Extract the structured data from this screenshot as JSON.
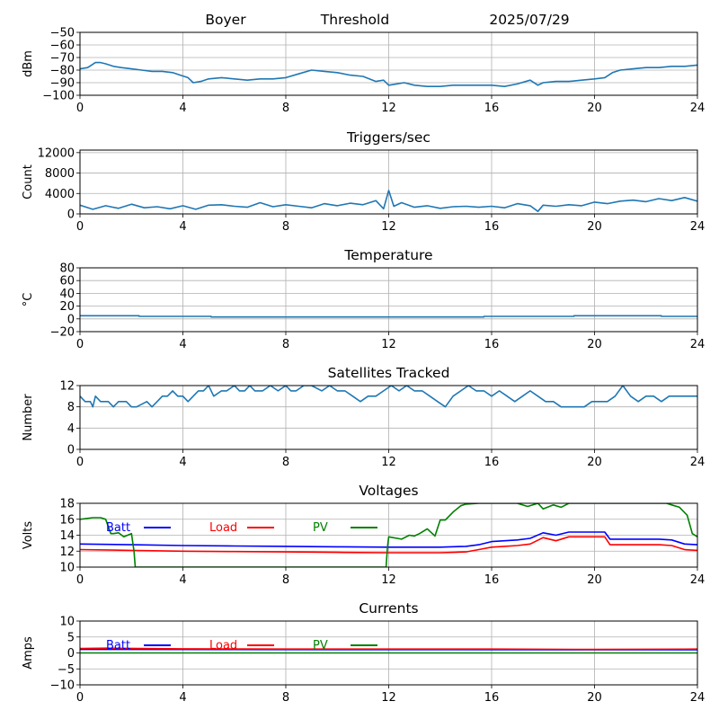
{
  "header": {
    "site": "Boyer",
    "label": "Threshold",
    "date": "2025/07/29"
  },
  "chart_data": [
    {
      "id": "threshold",
      "type": "line",
      "title": "",
      "ylabel": "dBm",
      "xlim": [
        0,
        24
      ],
      "ylim": [
        -100,
        -50
      ],
      "xticks": [
        0,
        4,
        8,
        12,
        16,
        20,
        24
      ],
      "yticks": [
        -100,
        -90,
        -80,
        -70,
        -60,
        -50
      ],
      "grid": true,
      "series": [
        {
          "color": "#1f77b4",
          "x": [
            0,
            0.3,
            0.6,
            0.8,
            1.0,
            1.3,
            1.6,
            2.0,
            2.4,
            2.8,
            3.2,
            3.6,
            3.9,
            4.2,
            4.4,
            4.7,
            5.0,
            5.5,
            6.0,
            6.5,
            7.0,
            7.5,
            8.0,
            8.5,
            9.0,
            9.5,
            10.0,
            10.5,
            11.0,
            11.5,
            11.8,
            12.0,
            12.3,
            12.6,
            13.0,
            13.5,
            14.0,
            14.5,
            15.0,
            15.5,
            16.0,
            16.5,
            17.0,
            17.5,
            17.8,
            18.0,
            18.5,
            19.0,
            19.5,
            20.0,
            20.4,
            20.7,
            21.0,
            21.5,
            22.0,
            22.5,
            23.0,
            23.5,
            24.0
          ],
          "y": [
            -79,
            -78,
            -74,
            -74,
            -75,
            -77,
            -78,
            -79,
            -80,
            -81,
            -81,
            -82,
            -84,
            -86,
            -90,
            -89,
            -87,
            -86,
            -87,
            -88,
            -87,
            -87,
            -86,
            -83,
            -80,
            -81,
            -82,
            -84,
            -85,
            -89,
            -88,
            -92,
            -91,
            -90,
            -92,
            -93,
            -93,
            -92,
            -92,
            -92,
            -92,
            -93,
            -91,
            -88,
            -92,
            -90,
            -89,
            -89,
            -88,
            -87,
            -86,
            -82,
            -80,
            -79,
            -78,
            -78,
            -77,
            -77,
            -76
          ]
        }
      ]
    },
    {
      "id": "triggers",
      "type": "line",
      "title": "Triggers/sec",
      "ylabel": "Count",
      "xlim": [
        0,
        24
      ],
      "ylim": [
        0,
        12500
      ],
      "xticks": [
        0,
        4,
        8,
        12,
        16,
        20,
        24
      ],
      "yticks": [
        0,
        4000,
        8000,
        12000
      ],
      "grid": true,
      "series": [
        {
          "color": "#1f77b4",
          "x": [
            0,
            0.5,
            1.0,
            1.5,
            2.0,
            2.5,
            3.0,
            3.5,
            4.0,
            4.5,
            5.0,
            5.5,
            6.0,
            6.5,
            7.0,
            7.5,
            8.0,
            8.5,
            9.0,
            9.5,
            10.0,
            10.5,
            11.0,
            11.5,
            11.8,
            12.0,
            12.2,
            12.5,
            13.0,
            13.5,
            14.0,
            14.5,
            15.0,
            15.5,
            16.0,
            16.5,
            17.0,
            17.5,
            17.8,
            18.0,
            18.5,
            19.0,
            19.5,
            20.0,
            20.5,
            21.0,
            21.5,
            22.0,
            22.5,
            23.0,
            23.5,
            24.0
          ],
          "y": [
            1700,
            900,
            1600,
            1100,
            1900,
            1200,
            1400,
            1000,
            1600,
            900,
            1700,
            1800,
            1500,
            1300,
            2200,
            1400,
            1800,
            1500,
            1200,
            2000,
            1600,
            2100,
            1800,
            2600,
            1000,
            4600,
            1500,
            2200,
            1300,
            1600,
            1100,
            1400,
            1500,
            1300,
            1500,
            1200,
            2000,
            1600,
            500,
            1700,
            1500,
            1800,
            1600,
            2300,
            2000,
            2500,
            2700,
            2400,
            3000,
            2600,
            3200,
            2500
          ]
        }
      ]
    },
    {
      "id": "temperature",
      "type": "line",
      "title": "Temperature",
      "ylabel": "°C",
      "xlim": [
        0,
        24
      ],
      "ylim": [
        -20,
        80
      ],
      "xticks": [
        0,
        4,
        8,
        12,
        16,
        20,
        24
      ],
      "yticks": [
        -20,
        0,
        20,
        40,
        60,
        80
      ],
      "grid": true,
      "series": [
        {
          "color": "#1f77b4",
          "x": [
            0,
            2.3,
            2.3,
            5.1,
            5.1,
            15.7,
            15.7,
            19.2,
            19.2,
            22.6,
            22.6,
            24
          ],
          "y": [
            5,
            5,
            4,
            4,
            3,
            3,
            4,
            4,
            5,
            5,
            4,
            4
          ]
        }
      ]
    },
    {
      "id": "satellites",
      "type": "line",
      "title": "Satellites Tracked",
      "ylabel": "Number",
      "xlim": [
        0,
        24
      ],
      "ylim": [
        0,
        12
      ],
      "xticks": [
        0,
        4,
        8,
        12,
        16,
        20,
        24
      ],
      "yticks": [
        0,
        4,
        8,
        12
      ],
      "grid": true,
      "series": [
        {
          "color": "#1f77b4",
          "x": [
            0,
            0.2,
            0.4,
            0.5,
            0.6,
            0.8,
            1.1,
            1.3,
            1.5,
            1.8,
            2.0,
            2.2,
            2.6,
            2.8,
            3.0,
            3.2,
            3.4,
            3.6,
            3.8,
            4.0,
            4.2,
            4.4,
            4.6,
            4.8,
            5.0,
            5.2,
            5.5,
            5.7,
            6.0,
            6.2,
            6.4,
            6.6,
            6.8,
            7.1,
            7.4,
            7.7,
            8.0,
            8.2,
            8.4,
            8.7,
            9.0,
            9.4,
            9.7,
            10.0,
            10.3,
            10.6,
            10.9,
            11.2,
            11.5,
            11.8,
            12.1,
            12.4,
            12.7,
            13.0,
            13.3,
            13.6,
            13.9,
            14.2,
            14.5,
            14.8,
            15.1,
            15.4,
            15.7,
            16.0,
            16.3,
            16.6,
            16.9,
            17.2,
            17.5,
            17.8,
            18.1,
            18.4,
            18.7,
            19.0,
            19.3,
            19.6,
            19.9,
            20.2,
            20.5,
            20.8,
            21.1,
            21.4,
            21.7,
            22.0,
            22.3,
            22.6,
            22.9,
            23.2,
            23.5,
            23.8,
            24.0
          ],
          "y": [
            10,
            9,
            9,
            8,
            10,
            9,
            9,
            8,
            9,
            9,
            8,
            8,
            9,
            8,
            9,
            10,
            10,
            11,
            10,
            10,
            9,
            10,
            11,
            11,
            12,
            10,
            11,
            11,
            12,
            11,
            11,
            12,
            11,
            11,
            12,
            11,
            12,
            11,
            11,
            12,
            12,
            11,
            12,
            11,
            11,
            10,
            9,
            10,
            10,
            11,
            12,
            11,
            12,
            11,
            11,
            10,
            9,
            8,
            10,
            11,
            12,
            11,
            11,
            10,
            11,
            10,
            9,
            10,
            11,
            10,
            9,
            9,
            8,
            8,
            8,
            8,
            9,
            9,
            9,
            10,
            12,
            10,
            9,
            10,
            10,
            9,
            10,
            10,
            10,
            10,
            10
          ]
        }
      ]
    },
    {
      "id": "voltages",
      "type": "line",
      "title": "Voltages",
      "ylabel": "Volts",
      "xlim": [
        0,
        24
      ],
      "ylim": [
        10,
        18
      ],
      "xticks": [
        0,
        4,
        8,
        12,
        16,
        20,
        24
      ],
      "yticks": [
        10,
        12,
        14,
        16,
        18
      ],
      "grid": true,
      "legend": [
        {
          "label": "Batt",
          "color": "#0000ff"
        },
        {
          "label": "Load",
          "color": "#ff0000"
        },
        {
          "label": "PV",
          "color": "#008000"
        }
      ],
      "series": [
        {
          "label": "Batt",
          "color": "#0000ff",
          "x": [
            0,
            2,
            4,
            6,
            8,
            10,
            12,
            14,
            15,
            15.5,
            16,
            16.5,
            17,
            17.5,
            18,
            18.5,
            19,
            19.5,
            20,
            20.4,
            20.6,
            21,
            22,
            22.5,
            23,
            23.5,
            24
          ],
          "y": [
            12.9,
            12.8,
            12.7,
            12.65,
            12.6,
            12.55,
            12.5,
            12.5,
            12.6,
            12.8,
            13.2,
            13.3,
            13.4,
            13.6,
            14.3,
            14.0,
            14.4,
            14.4,
            14.4,
            14.4,
            13.5,
            13.5,
            13.5,
            13.5,
            13.4,
            12.9,
            12.8
          ]
        },
        {
          "label": "Load",
          "color": "#ff0000",
          "x": [
            0,
            2,
            4,
            6,
            8,
            10,
            12,
            14,
            15,
            15.5,
            16,
            16.5,
            17,
            17.5,
            18,
            18.5,
            19,
            19.5,
            20,
            20.4,
            20.6,
            21,
            22,
            22.5,
            23,
            23.5,
            24
          ],
          "y": [
            12.2,
            12.1,
            12.0,
            11.95,
            11.9,
            11.85,
            11.8,
            11.8,
            11.9,
            12.2,
            12.5,
            12.6,
            12.7,
            12.9,
            13.7,
            13.3,
            13.8,
            13.8,
            13.8,
            13.8,
            12.8,
            12.8,
            12.8,
            12.8,
            12.7,
            12.2,
            12.1
          ]
        },
        {
          "label": "PV",
          "color": "#008000",
          "x": [
            0,
            0.5,
            0.8,
            1.0,
            1.2,
            1.3,
            1.5,
            1.7,
            2.0,
            2.1,
            2.15,
            11.9,
            11.95,
            12.0,
            12.5,
            12.8,
            13.0,
            13.2,
            13.5,
            13.8,
            14.0,
            14.2,
            14.5,
            14.8,
            15.0,
            15.5,
            16.0,
            17.0,
            17.4,
            17.8,
            18.0,
            18.4,
            18.7,
            19.0,
            20.0,
            21.0,
            22.0,
            22.8,
            23.0,
            23.3,
            23.6,
            23.8,
            24.0
          ],
          "y": [
            16.0,
            16.2,
            16.2,
            16.0,
            14.2,
            14.2,
            14.3,
            13.8,
            14.2,
            12.0,
            10.0,
            10.0,
            12.5,
            13.8,
            13.5,
            14.0,
            13.9,
            14.2,
            14.8,
            13.9,
            15.9,
            15.9,
            16.9,
            17.7,
            17.9,
            18.0,
            18.0,
            18.0,
            17.6,
            18.0,
            17.3,
            17.8,
            17.5,
            18.0,
            18.0,
            18.0,
            18.0,
            18.0,
            17.8,
            17.5,
            16.5,
            14.2,
            13.8
          ]
        }
      ]
    },
    {
      "id": "currents",
      "type": "line",
      "title": "Currents",
      "ylabel": "Amps",
      "xlim": [
        0,
        24
      ],
      "ylim": [
        -10,
        10
      ],
      "xticks": [
        0,
        4,
        8,
        12,
        16,
        20,
        24
      ],
      "yticks": [
        -10,
        -5,
        0,
        5,
        10
      ],
      "grid": true,
      "legend": [
        {
          "label": "Batt",
          "color": "#0000ff"
        },
        {
          "label": "Load",
          "color": "#ff0000"
        },
        {
          "label": "PV",
          "color": "#008000"
        }
      ],
      "series": [
        {
          "label": "Batt",
          "color": "#0000ff",
          "x": [
            0,
            24
          ],
          "y": [
            1.1,
            1.0
          ]
        },
        {
          "label": "Load",
          "color": "#ff0000",
          "x": [
            0,
            1,
            4,
            8,
            12,
            16,
            20,
            24
          ],
          "y": [
            1.4,
            1.5,
            1.3,
            1.2,
            1.2,
            1.2,
            1.1,
            1.2
          ]
        },
        {
          "label": "PV",
          "color": "#008000",
          "x": [
            0,
            24
          ],
          "y": [
            0,
            0
          ]
        }
      ]
    }
  ]
}
